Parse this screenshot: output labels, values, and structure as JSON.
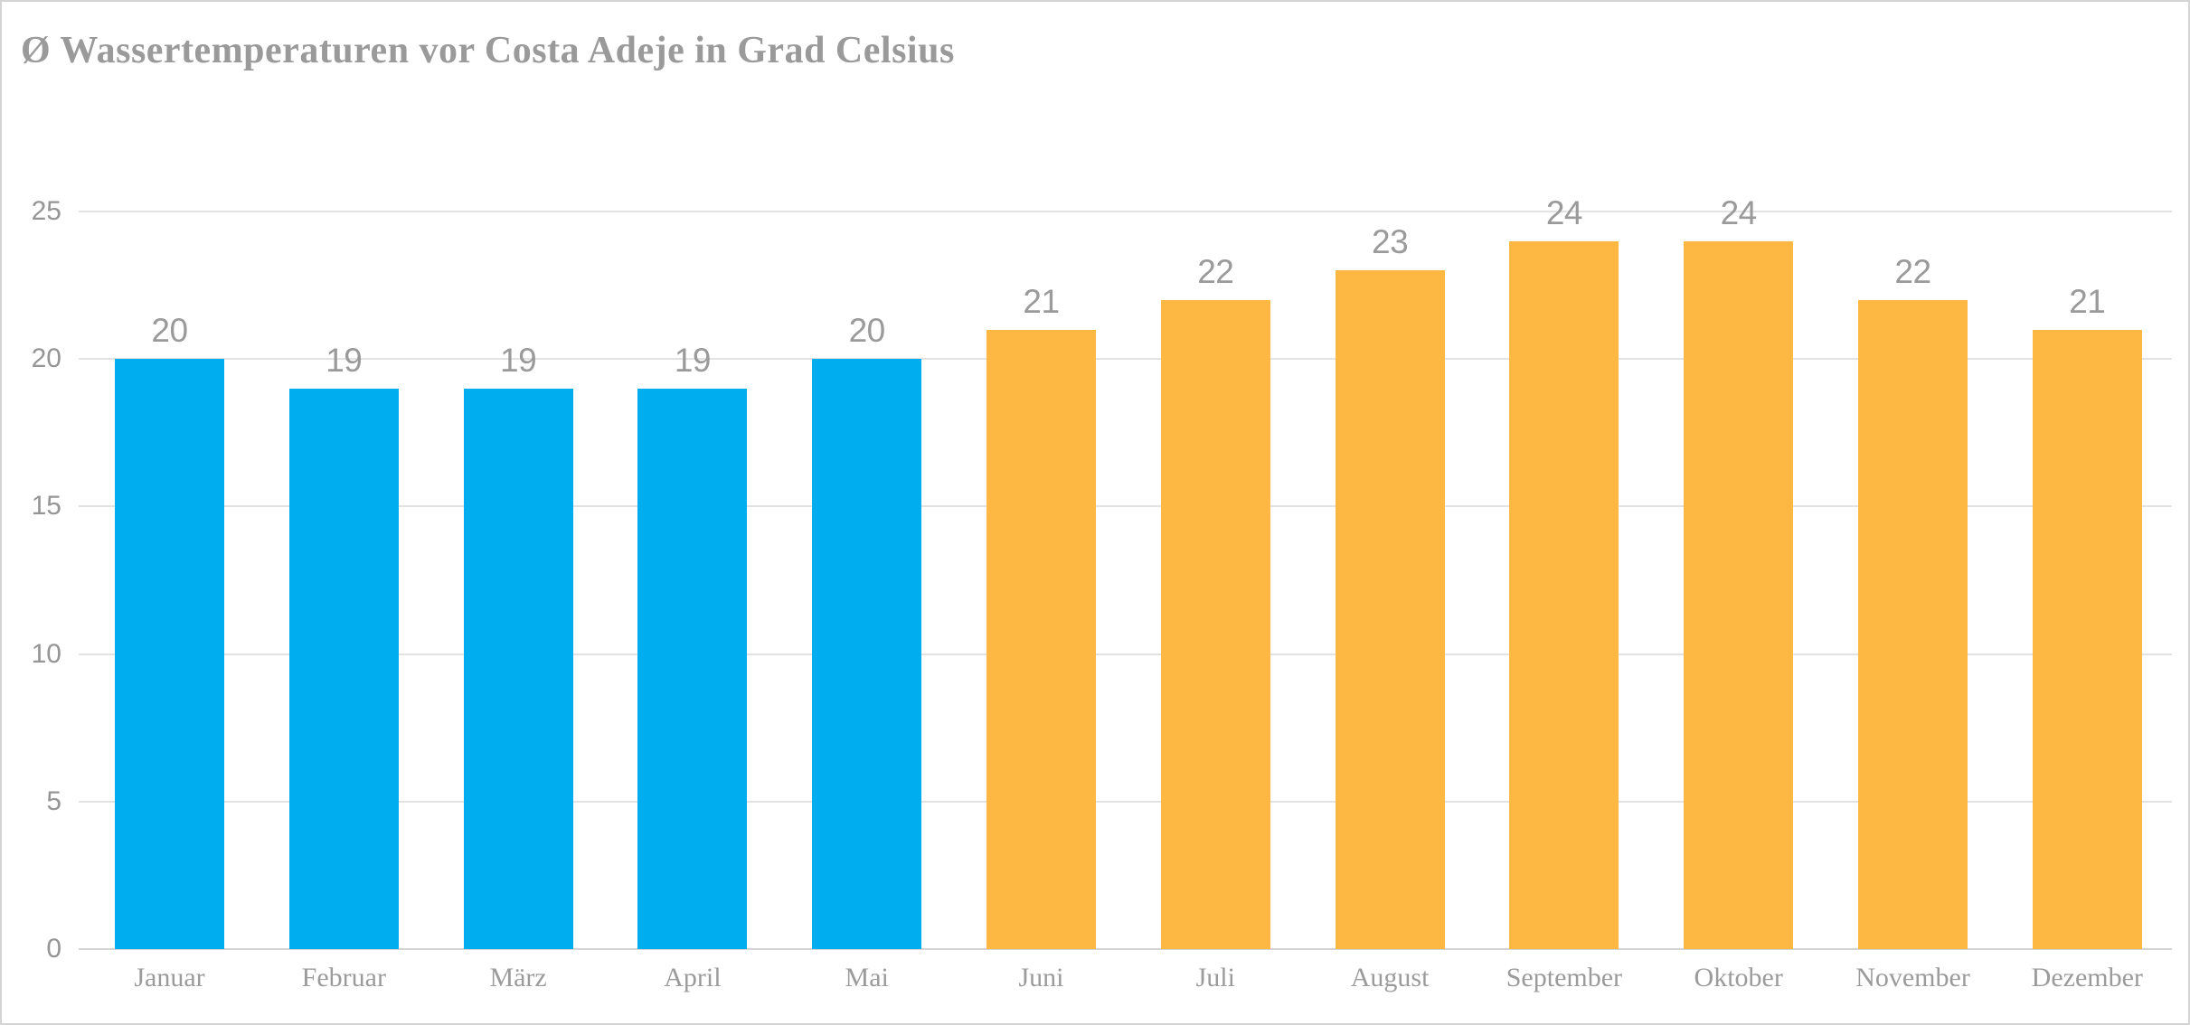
{
  "title": "Ø Wassertemperaturen vor Costa Adeje in Grad Celsius",
  "chart_data": {
    "type": "bar",
    "title": "Ø Wassertemperaturen vor Costa Adeje in Grad Celsius",
    "categories": [
      "Januar",
      "Februar",
      "März",
      "April",
      "Mai",
      "Juni",
      "Juli",
      "August",
      "September",
      "Oktober",
      "November",
      "Dezember"
    ],
    "values": [
      20,
      19,
      19,
      19,
      20,
      21,
      22,
      23,
      24,
      24,
      22,
      21
    ],
    "data_labels_visible": true,
    "xlabel": "",
    "ylabel": "",
    "ylim": [
      0,
      25
    ],
    "yticks": [
      0,
      5,
      10,
      15,
      20,
      25
    ],
    "grid": "horizontal",
    "legend": "none",
    "colors": {
      "cold_months": "#00AEEF",
      "warm_months": "#FDB843"
    },
    "bar_colors": [
      "#00AEEF",
      "#00AEEF",
      "#00AEEF",
      "#00AEEF",
      "#00AEEF",
      "#FDB843",
      "#FDB843",
      "#FDB843",
      "#FDB843",
      "#FDB843",
      "#FDB843",
      "#FDB843"
    ]
  },
  "palette": {
    "background": "#ffffff",
    "border": "#d4d4d4",
    "gridline": "#e2e2e2",
    "zero_line": "#d4d4d4",
    "title_text": "#9a9a9a",
    "axis_text": "#959595",
    "value_text": "#9a9a9a",
    "month_text": "#9b9b9b"
  }
}
